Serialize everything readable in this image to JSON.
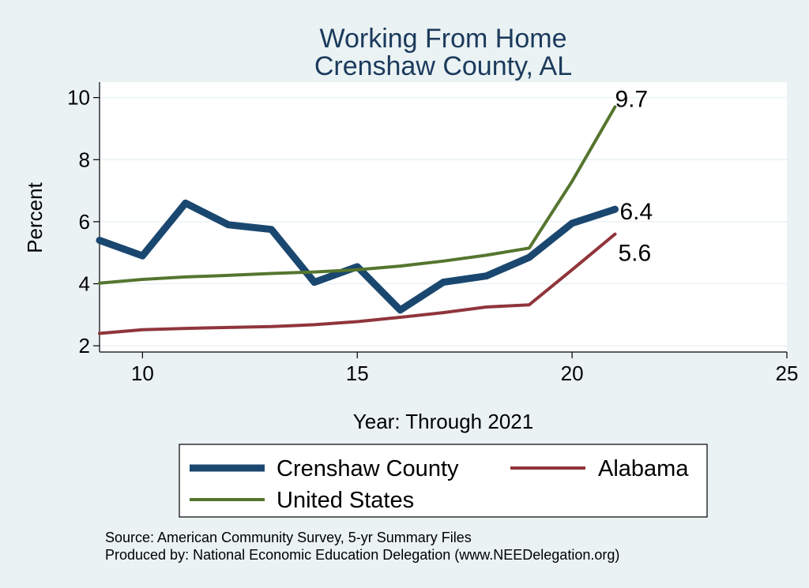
{
  "chart_data": {
    "type": "line",
    "title": [
      "Working From Home",
      "Crenshaw County, AL"
    ],
    "xlabel": "Year: Through 2021",
    "ylabel": "Percent",
    "xlim": [
      9,
      25
    ],
    "ylim": [
      1.8,
      10.5
    ],
    "xticks": [
      10,
      15,
      20,
      25
    ],
    "yticks": [
      2,
      4,
      6,
      8,
      10
    ],
    "grid": true,
    "legend_position": "bottom",
    "series": [
      {
        "name": "Crenshaw County",
        "color": "#1a476f",
        "line_weight": "thick",
        "end_label": "6.4",
        "x": [
          9,
          10,
          11,
          12,
          13,
          14,
          15,
          16,
          17,
          18,
          19,
          20,
          21
        ],
        "y": [
          5.4,
          4.9,
          6.6,
          5.9,
          5.75,
          4.05,
          4.55,
          3.15,
          4.05,
          4.25,
          4.85,
          5.95,
          6.4
        ]
      },
      {
        "name": "Alabama",
        "color": "#90353b",
        "line_weight": "medium",
        "end_label": "5.6",
        "x": [
          9,
          10,
          11,
          12,
          13,
          14,
          15,
          16,
          17,
          18,
          19,
          20,
          21
        ],
        "y": [
          2.4,
          2.52,
          2.56,
          2.59,
          2.62,
          2.68,
          2.78,
          2.92,
          3.07,
          3.25,
          3.32,
          4.45,
          5.6
        ]
      },
      {
        "name": "United States",
        "color": "#55752f",
        "line_weight": "medium",
        "end_label": "9.7",
        "x": [
          9,
          10,
          11,
          12,
          13,
          14,
          15,
          16,
          17,
          18,
          19,
          20,
          21
        ],
        "y": [
          4.02,
          4.14,
          4.22,
          4.27,
          4.33,
          4.38,
          4.45,
          4.57,
          4.73,
          4.92,
          5.15,
          7.3,
          9.7
        ]
      }
    ],
    "source_note": [
      "Source: American Community Survey, 5-yr Summary Files",
      "Produced by: National Economic Education Delegation (www.NEEDelegation.org)"
    ]
  }
}
